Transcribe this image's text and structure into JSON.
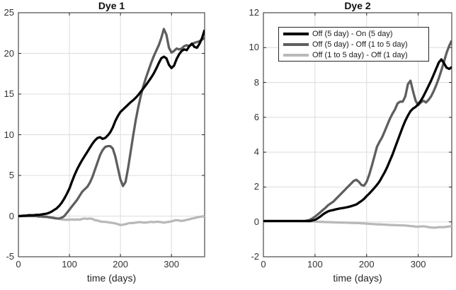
{
  "figure": {
    "background": "#ffffff"
  },
  "palette": {
    "series_black": "#000000",
    "series_darkgray": "#5e5e5e",
    "series_lightgray": "#b9b9b9",
    "grid": "#dcdcdc",
    "axis": "#262626",
    "tick_label": "#333333",
    "title": "#0f0f0f"
  },
  "legend": {
    "items": [
      {
        "label": "Off (5 day) - On (5 day)",
        "color": "#000000"
      },
      {
        "label": "Off (5 day) - Off (1 to 5 day)",
        "color": "#5e5e5e"
      },
      {
        "label": "Off (1 to 5 day) - Off (1 day)",
        "color": "#b9b9b9"
      }
    ]
  },
  "chart_data": [
    {
      "type": "line",
      "title": "Dye 1",
      "xlabel": "time (days)",
      "ylabel": "",
      "xlim": [
        0,
        365
      ],
      "ylim": [
        -5,
        25
      ],
      "xticks": [
        0,
        100,
        200,
        300
      ],
      "yticks": [
        -5,
        0,
        5,
        10,
        15,
        20,
        25
      ],
      "grid": true,
      "legend_visible": false,
      "x": [
        0,
        5,
        10,
        15,
        20,
        25,
        30,
        35,
        40,
        45,
        50,
        55,
        60,
        65,
        70,
        75,
        80,
        85,
        90,
        95,
        100,
        105,
        110,
        115,
        120,
        125,
        130,
        135,
        140,
        145,
        150,
        155,
        160,
        165,
        170,
        175,
        180,
        185,
        190,
        195,
        200,
        205,
        210,
        215,
        220,
        225,
        230,
        235,
        240,
        245,
        250,
        255,
        260,
        265,
        270,
        275,
        280,
        285,
        290,
        295,
        300,
        305,
        310,
        315,
        320,
        325,
        330,
        335,
        340,
        345,
        350,
        355,
        360,
        365
      ],
      "series": [
        {
          "name": "Off (5 day) - On (5 day)",
          "color": "#000000",
          "values": [
            0.0,
            0.0,
            0.05,
            0.05,
            0.1,
            0.1,
            0.1,
            0.15,
            0.15,
            0.2,
            0.25,
            0.3,
            0.4,
            0.55,
            0.75,
            0.95,
            1.25,
            1.65,
            2.15,
            2.75,
            3.4,
            4.25,
            5.05,
            5.75,
            6.35,
            6.9,
            7.4,
            7.9,
            8.4,
            8.9,
            9.3,
            9.6,
            9.7,
            9.5,
            9.6,
            9.9,
            10.3,
            10.9,
            11.7,
            12.3,
            12.8,
            13.1,
            13.4,
            13.7,
            14.0,
            14.25,
            14.55,
            14.9,
            15.3,
            15.7,
            16.1,
            16.55,
            17.0,
            17.5,
            18.1,
            18.8,
            19.4,
            19.6,
            19.4,
            18.6,
            18.2,
            18.5,
            19.3,
            19.9,
            20.3,
            20.5,
            20.4,
            20.9,
            21.2,
            20.8,
            20.7,
            21.2,
            21.9,
            22.9
          ]
        },
        {
          "name": "Off (5 day) - Off (1 to 5 day)",
          "color": "#5e5e5e",
          "values": [
            0.0,
            0.0,
            0.0,
            0.0,
            0.0,
            0.0,
            0.0,
            0.0,
            -0.05,
            -0.05,
            -0.1,
            -0.1,
            -0.15,
            -0.2,
            -0.25,
            -0.3,
            -0.3,
            -0.2,
            0.0,
            0.4,
            0.8,
            1.2,
            1.6,
            2.0,
            2.5,
            3.0,
            3.3,
            3.6,
            4.1,
            4.8,
            5.7,
            6.6,
            7.5,
            8.1,
            8.5,
            8.6,
            8.6,
            8.3,
            7.3,
            5.9,
            4.5,
            3.7,
            4.2,
            5.9,
            7.9,
            9.9,
            11.8,
            13.4,
            14.8,
            16.0,
            17.0,
            17.9,
            18.8,
            19.6,
            20.3,
            21.0,
            21.9,
            23.0,
            22.3,
            20.7,
            20.1,
            20.3,
            20.6,
            20.5,
            20.6,
            20.9,
            21.0,
            20.9,
            21.1,
            21.3,
            21.4,
            21.5,
            21.7,
            21.9
          ]
        },
        {
          "name": "Off (1 to 5 day) - Off (1 day)",
          "color": "#b9b9b9",
          "values": [
            0.05,
            0.05,
            0.05,
            0.05,
            0.05,
            0.05,
            0.05,
            0.05,
            0.0,
            0.0,
            0.0,
            -0.05,
            -0.1,
            -0.15,
            -0.2,
            -0.3,
            -0.35,
            -0.4,
            -0.45,
            -0.45,
            -0.45,
            -0.4,
            -0.45,
            -0.4,
            -0.45,
            -0.35,
            -0.3,
            -0.35,
            -0.3,
            -0.35,
            -0.5,
            -0.55,
            -0.65,
            -0.7,
            -0.7,
            -0.75,
            -0.8,
            -0.85,
            -0.9,
            -1.0,
            -1.1,
            -1.05,
            -1.0,
            -0.9,
            -0.85,
            -0.85,
            -0.8,
            -0.75,
            -0.75,
            -0.8,
            -0.8,
            -0.75,
            -0.7,
            -0.75,
            -0.7,
            -0.7,
            -0.75,
            -0.8,
            -0.75,
            -0.7,
            -0.65,
            -0.55,
            -0.5,
            -0.55,
            -0.6,
            -0.55,
            -0.45,
            -0.4,
            -0.3,
            -0.25,
            -0.15,
            -0.1,
            -0.05,
            0.0
          ]
        }
      ]
    },
    {
      "type": "line",
      "title": "Dye 2",
      "xlabel": "time (days)",
      "ylabel": "",
      "xlim": [
        0,
        365
      ],
      "ylim": [
        -2,
        12
      ],
      "xticks": [
        0,
        100,
        200,
        300
      ],
      "yticks": [
        -2,
        0,
        2,
        4,
        6,
        8,
        10,
        12
      ],
      "grid": true,
      "legend_visible": true,
      "x": [
        0,
        5,
        10,
        15,
        20,
        25,
        30,
        35,
        40,
        45,
        50,
        55,
        60,
        65,
        70,
        75,
        80,
        85,
        90,
        95,
        100,
        105,
        110,
        115,
        120,
        125,
        130,
        135,
        140,
        145,
        150,
        155,
        160,
        165,
        170,
        175,
        180,
        185,
        190,
        195,
        200,
        205,
        210,
        215,
        220,
        225,
        230,
        235,
        240,
        245,
        250,
        255,
        260,
        265,
        270,
        275,
        280,
        285,
        290,
        295,
        300,
        305,
        310,
        315,
        320,
        325,
        330,
        335,
        340,
        345,
        350,
        355,
        360,
        365
      ],
      "series": [
        {
          "name": "Off (5 day) - On (5 day)",
          "color": "#000000",
          "values": [
            0.05,
            0.05,
            0.05,
            0.05,
            0.05,
            0.05,
            0.05,
            0.05,
            0.05,
            0.05,
            0.05,
            0.05,
            0.05,
            0.05,
            0.05,
            0.05,
            0.05,
            0.05,
            0.05,
            0.08,
            0.12,
            0.2,
            0.3,
            0.42,
            0.52,
            0.6,
            0.65,
            0.68,
            0.72,
            0.75,
            0.78,
            0.8,
            0.83,
            0.86,
            0.9,
            0.95,
            1.0,
            1.1,
            1.2,
            1.32,
            1.48,
            1.62,
            1.78,
            1.95,
            2.12,
            2.32,
            2.58,
            2.85,
            3.15,
            3.5,
            3.85,
            4.25,
            4.65,
            5.05,
            5.45,
            5.8,
            6.1,
            6.35,
            6.5,
            6.6,
            6.75,
            6.95,
            7.2,
            7.5,
            7.8,
            8.1,
            8.45,
            8.8,
            9.15,
            9.32,
            9.1,
            8.85,
            8.78,
            8.88
          ]
        },
        {
          "name": "Off (5 day) - Off (1 to 5 day)",
          "color": "#5e5e5e",
          "values": [
            0.05,
            0.05,
            0.05,
            0.05,
            0.05,
            0.05,
            0.05,
            0.05,
            0.05,
            0.05,
            0.05,
            0.05,
            0.05,
            0.05,
            0.05,
            0.05,
            0.05,
            0.08,
            0.12,
            0.2,
            0.3,
            0.42,
            0.55,
            0.68,
            0.8,
            0.95,
            1.05,
            1.15,
            1.3,
            1.45,
            1.6,
            1.75,
            1.9,
            2.05,
            2.2,
            2.35,
            2.42,
            2.3,
            2.12,
            2.08,
            2.3,
            2.7,
            3.2,
            3.75,
            4.3,
            4.6,
            4.85,
            5.2,
            5.55,
            5.9,
            6.2,
            6.45,
            6.8,
            6.9,
            6.9,
            7.2,
            7.9,
            8.1,
            7.5,
            6.95,
            6.7,
            6.85,
            6.95,
            6.85,
            7.0,
            7.2,
            7.5,
            7.85,
            8.25,
            8.7,
            9.2,
            9.7,
            10.1,
            10.4
          ]
        },
        {
          "name": "Off (1 to 5 day) - Off (1 day)",
          "color": "#b9b9b9",
          "values": [
            0.05,
            0.05,
            0.05,
            0.05,
            0.05,
            0.05,
            0.05,
            0.05,
            0.05,
            0.05,
            0.05,
            0.05,
            0.05,
            0.05,
            0.05,
            0.04,
            0.04,
            0.03,
            0.03,
            0.03,
            0.02,
            0.01,
            0.0,
            0.0,
            -0.01,
            -0.01,
            -0.02,
            -0.02,
            -0.03,
            -0.03,
            -0.04,
            -0.04,
            -0.05,
            -0.05,
            -0.06,
            -0.06,
            -0.07,
            -0.07,
            -0.08,
            -0.09,
            -0.1,
            -0.11,
            -0.12,
            -0.13,
            -0.14,
            -0.14,
            -0.15,
            -0.16,
            -0.16,
            -0.18,
            -0.18,
            -0.19,
            -0.19,
            -0.2,
            -0.2,
            -0.21,
            -0.22,
            -0.24,
            -0.25,
            -0.27,
            -0.28,
            -0.26,
            -0.25,
            -0.27,
            -0.3,
            -0.32,
            -0.33,
            -0.32,
            -0.3,
            -0.3,
            -0.3,
            -0.28,
            -0.26,
            -0.25
          ]
        }
      ]
    }
  ]
}
